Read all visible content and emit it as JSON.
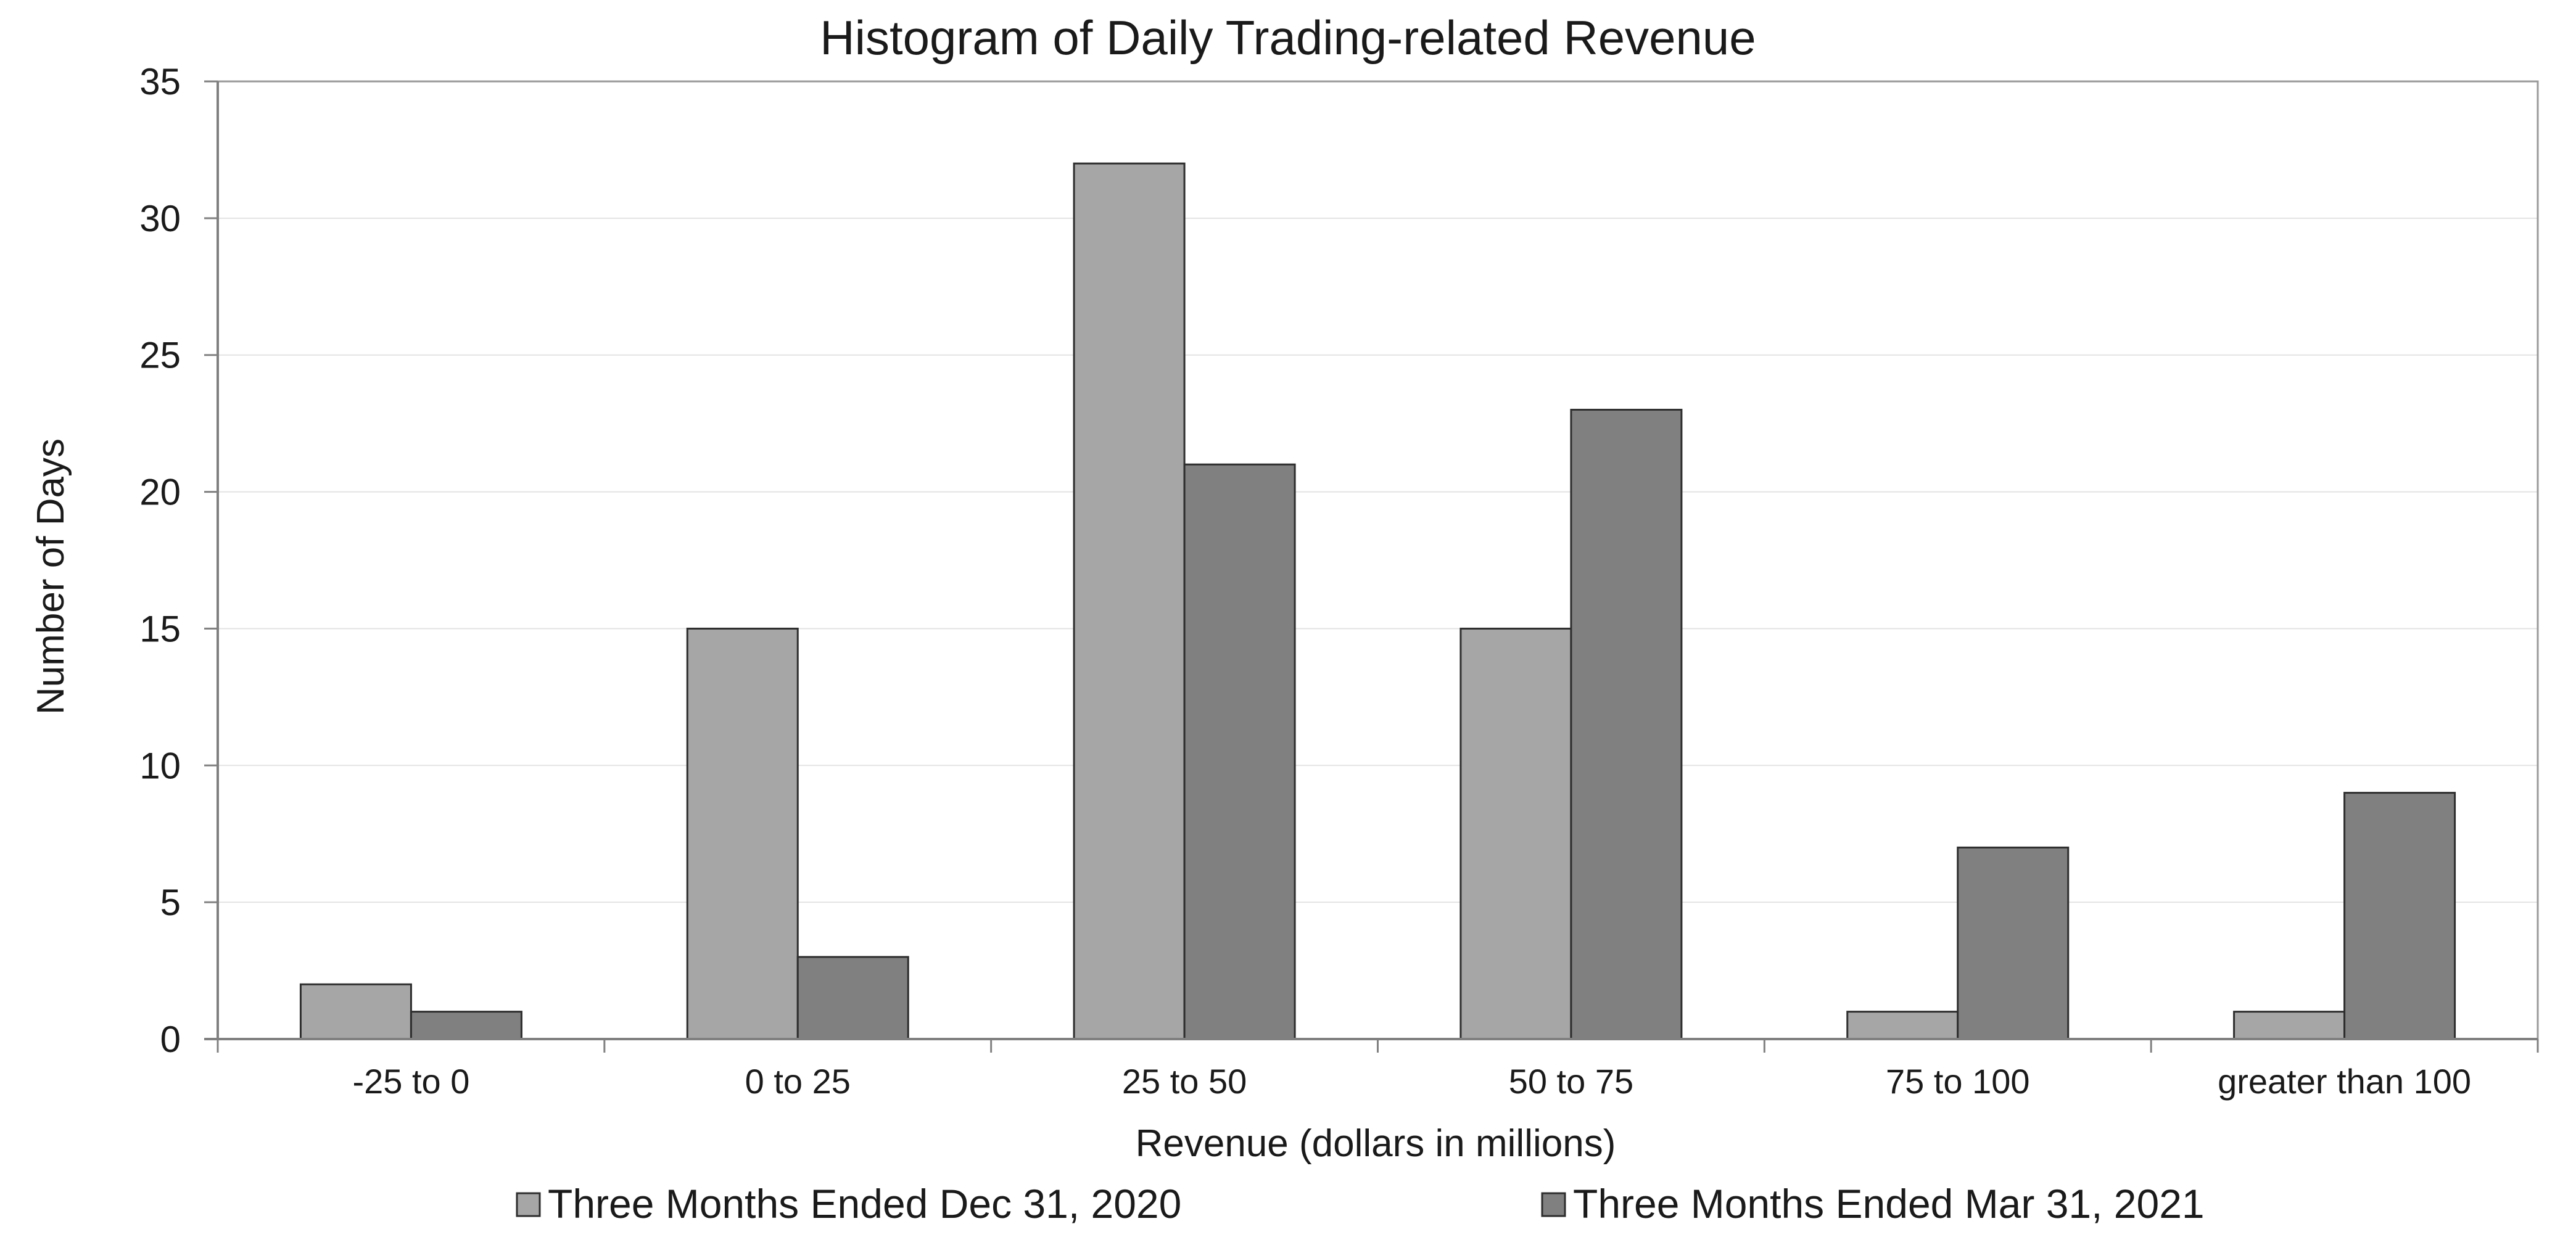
{
  "chart_data": {
    "type": "bar",
    "title": "Histogram of Daily Trading-related Revenue",
    "xlabel": "Revenue (dollars in millions)",
    "ylabel": "Number of Days",
    "categories": [
      "-25 to 0",
      "0 to 25",
      "25 to 50",
      "50 to 75",
      "75 to 100",
      "greater than 100"
    ],
    "series": [
      {
        "name": "Three Months Ended Dec 31, 2020",
        "color": "#a6a6a6",
        "values": [
          2,
          15,
          32,
          15,
          1,
          1
        ]
      },
      {
        "name": "Three Months Ended Mar 31, 2021",
        "color": "#808080",
        "values": [
          1,
          3,
          21,
          23,
          7,
          9
        ]
      }
    ],
    "ylim": [
      0,
      35
    ],
    "yticks": [
      0,
      5,
      10,
      15,
      20,
      25,
      30,
      35
    ],
    "grid": true,
    "legend": "bottom"
  }
}
